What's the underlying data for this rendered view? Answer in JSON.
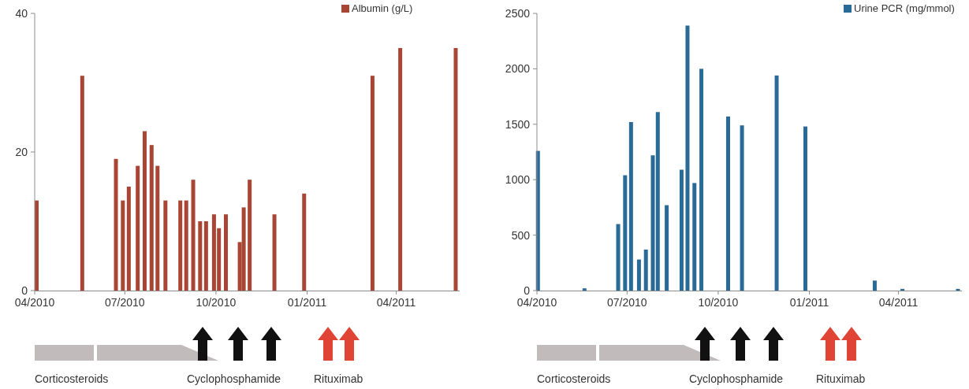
{
  "chart_data": [
    {
      "type": "bar",
      "x": [
        "2010-04-03",
        "2010-05-19",
        "2010-06-22",
        "2010-06-29",
        "2010-07-05",
        "2010-07-14",
        "2010-07-21",
        "2010-07-28",
        "2010-08-03",
        "2010-08-11",
        "2010-08-26",
        "2010-09-01",
        "2010-09-08",
        "2010-09-15",
        "2010-09-21",
        "2010-09-29",
        "2010-10-04",
        "2010-10-11",
        "2010-10-25",
        "2010-10-29",
        "2010-11-04",
        "2010-11-29",
        "2010-12-29",
        "2011-03-08",
        "2011-04-05",
        "2011-05-31"
      ],
      "series": [
        {
          "name": "Albumin (g/L)",
          "color": "#a94535",
          "values": [
            13,
            31,
            19,
            13,
            15,
            18,
            23,
            21,
            18,
            13,
            13,
            13,
            16,
            10,
            10,
            11,
            9,
            11,
            7,
            12,
            16,
            11,
            14,
            31,
            35,
            35
          ]
        }
      ],
      "xlim": [
        "2010-04-01",
        "2011-06-04"
      ],
      "xticks": [
        {
          "value": "2010-04-01",
          "label": "04/2010"
        },
        {
          "value": "2010-07-01",
          "label": "07/2010"
        },
        {
          "value": "2010-10-01",
          "label": "10/2010"
        },
        {
          "value": "2011-01-01",
          "label": "01/2011"
        },
        {
          "value": "2011-04-01",
          "label": "04/2011"
        }
      ],
      "ylim": [
        0,
        40
      ],
      "yticks": [
        0,
        20,
        40
      ],
      "legend": "top right",
      "annotations": [
        "Corticosteroids",
        "Cyclophosphamide",
        "Rituximab"
      ]
    },
    {
      "type": "bar",
      "x": [
        "2010-04-02",
        "2010-05-19",
        "2010-06-22",
        "2010-06-29",
        "2010-07-05",
        "2010-07-13",
        "2010-07-20",
        "2010-07-27",
        "2010-08-01",
        "2010-08-10",
        "2010-08-25",
        "2010-08-31",
        "2010-09-07",
        "2010-09-14",
        "2010-10-11",
        "2010-10-25",
        "2010-11-29",
        "2010-12-28",
        "2011-03-08",
        "2011-04-05",
        "2011-05-31"
      ],
      "series": [
        {
          "name": "Urine PCR (mg/mmol)",
          "color": "#2a6a96",
          "values": [
            1260,
            20,
            600,
            1040,
            1520,
            280,
            370,
            1220,
            1610,
            770,
            1090,
            2390,
            970,
            2000,
            1570,
            1490,
            1940,
            1480,
            90,
            15,
            15
          ]
        }
      ],
      "xlim": [
        "2010-04-01",
        "2011-06-04"
      ],
      "xticks": [
        {
          "value": "2010-04-01",
          "label": "04/2010"
        },
        {
          "value": "2010-07-01",
          "label": "07/2010"
        },
        {
          "value": "2010-10-01",
          "label": "10/2010"
        },
        {
          "value": "2011-01-01",
          "label": "01/2011"
        },
        {
          "value": "2011-04-01",
          "label": "04/2011"
        }
      ],
      "ylim": [
        0,
        2500
      ],
      "yticks": [
        0,
        500,
        1000,
        1500,
        2000,
        2500
      ],
      "legend": "top right",
      "annotations": [
        "Corticosteroids",
        "Cyclophosphamide",
        "Rituximab"
      ]
    }
  ]
}
